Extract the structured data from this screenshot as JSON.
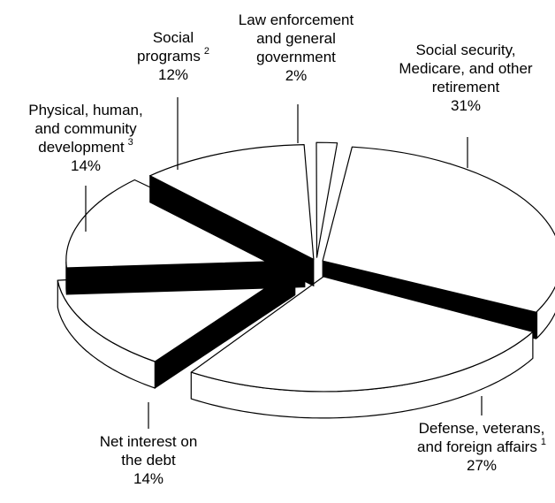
{
  "chart_data": {
    "type": "pie",
    "title": "",
    "slices": [
      {
        "lines": [
          "Social security,",
          "Medicare, and other",
          "retirement"
        ],
        "note": "",
        "value": 31,
        "value_label": "31%"
      },
      {
        "lines": [
          "Defense, veterans,",
          "and foreign affairs"
        ],
        "note": "1",
        "value": 27,
        "value_label": "27%"
      },
      {
        "lines": [
          "Net interest on",
          "the debt"
        ],
        "note": "",
        "value": 14,
        "value_label": "14%"
      },
      {
        "lines": [
          "Physical, human,",
          "and community",
          "development"
        ],
        "note": "3",
        "value": 14,
        "value_label": "14%"
      },
      {
        "lines": [
          "Social",
          "programs"
        ],
        "note": "2",
        "value": 12,
        "value_label": "12%"
      },
      {
        "lines": [
          "Law enforcement",
          "and general",
          "government"
        ],
        "note": "",
        "value": 2,
        "value_label": "2%"
      }
    ]
  }
}
